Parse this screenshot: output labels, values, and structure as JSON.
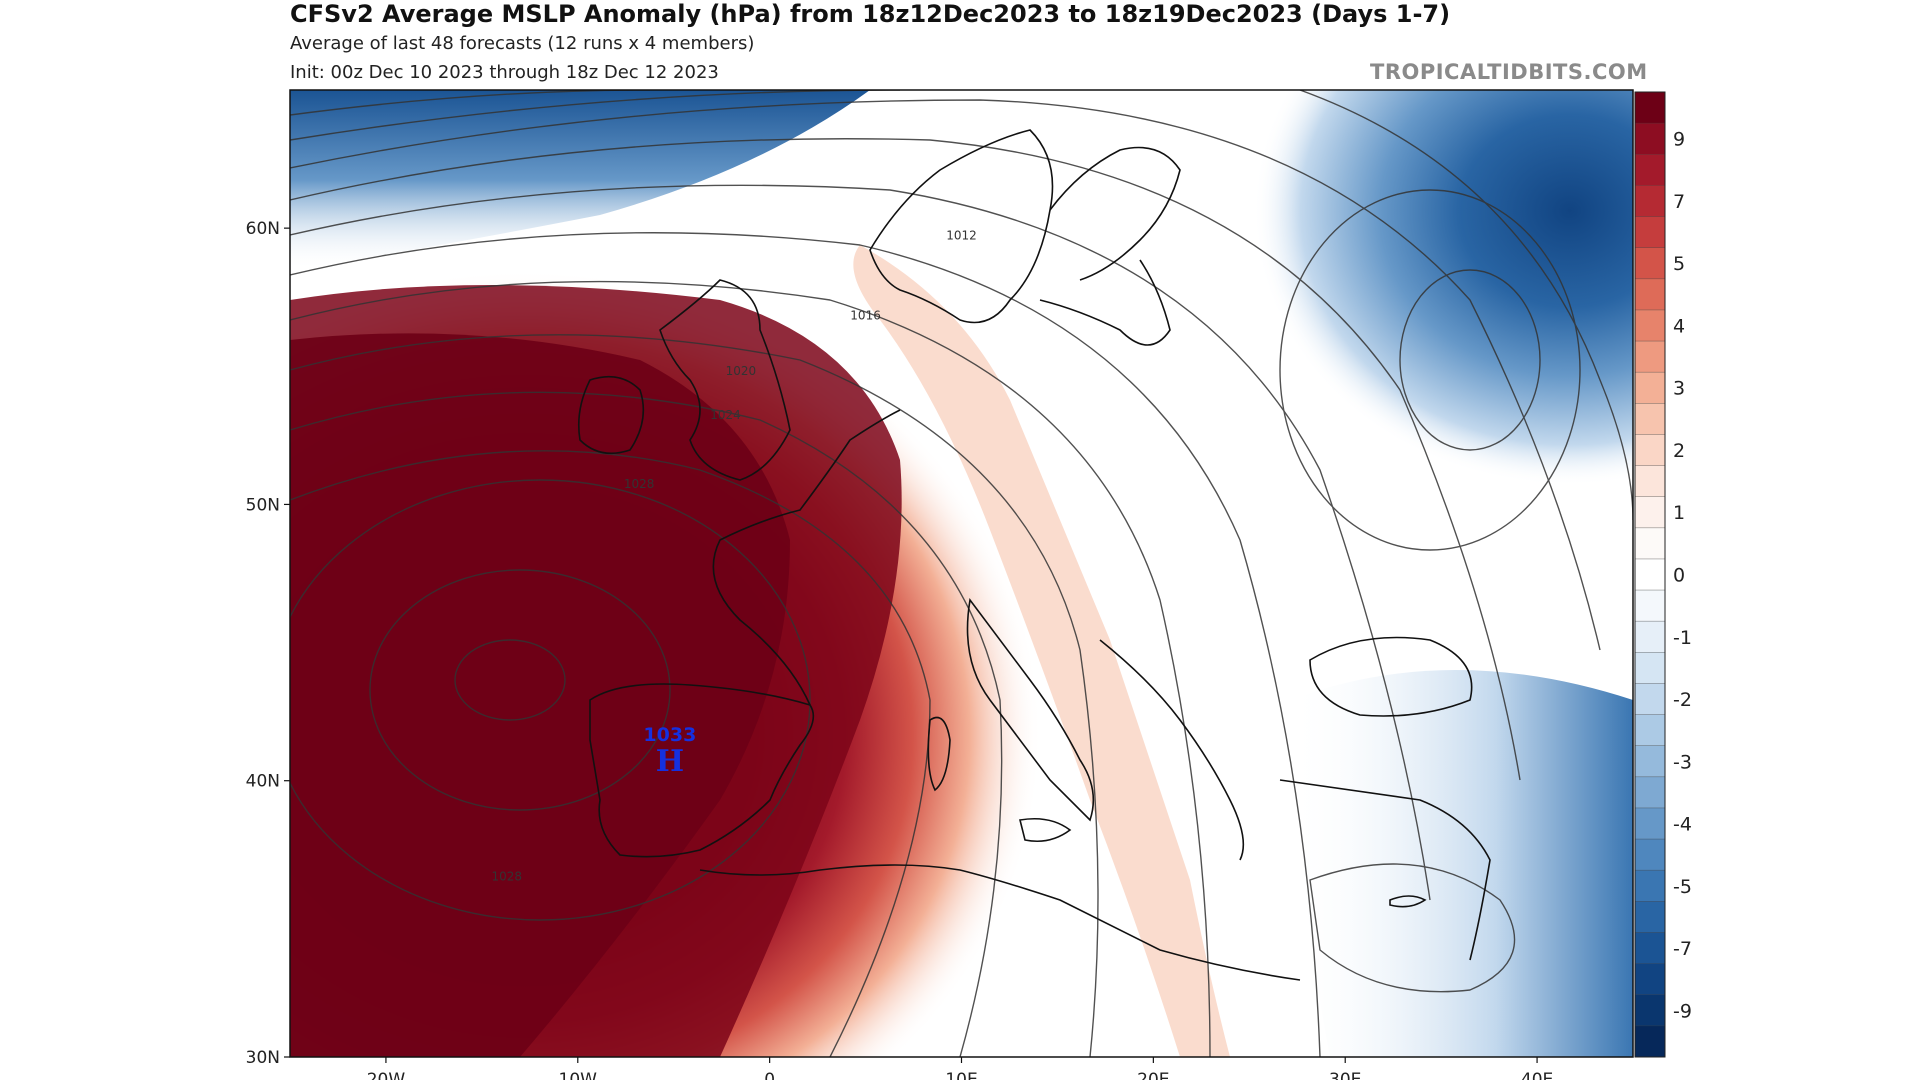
{
  "header": {
    "title": "CFSv2 Average MSLP Anomaly (hPa) from 18z12Dec2023 to 18z19Dec2023 (Days 1-7)",
    "line1": "Average of last 48 forecasts (12 runs x 4 members)",
    "line2": "Init: 00z Dec 10 2023 through 18z Dec 12 2023",
    "credit": "TROPICALTIDBITS.COM"
  },
  "map": {
    "lon_range": [
      -25,
      45
    ],
    "lat_range": [
      30,
      65
    ],
    "lon_ticks": [
      {
        "value": -20,
        "label": "20W"
      },
      {
        "value": -10,
        "label": "10W"
      },
      {
        "value": 0,
        "label": "0"
      },
      {
        "value": 10,
        "label": "10E"
      },
      {
        "value": 20,
        "label": "20E"
      },
      {
        "value": 30,
        "label": "30E"
      },
      {
        "value": 40,
        "label": "40E"
      }
    ],
    "lat_ticks": [
      {
        "value": 60,
        "label": "60N"
      },
      {
        "value": 50,
        "label": "50N"
      },
      {
        "value": 40,
        "label": "40N"
      },
      {
        "value": 30,
        "label": "30N"
      }
    ],
    "isobar_labels": [
      {
        "text": "1012",
        "lon": 10,
        "lat": 59.7
      },
      {
        "text": "1016",
        "lon": 5,
        "lat": 56.8
      },
      {
        "text": "1020",
        "lon": -1.5,
        "lat": 54.8
      },
      {
        "text": "1024",
        "lon": -2.3,
        "lat": 53.2
      },
      {
        "text": "1028",
        "lon": -6.8,
        "lat": 50.7
      },
      {
        "text": "1028",
        "lon": -13.7,
        "lat": 36.5
      }
    ],
    "high_center": {
      "value": "1033",
      "symbol": "H",
      "lon": -5.2,
      "lat": 41.0
    }
  },
  "colorbar": {
    "levels": [
      {
        "label": "",
        "color": "#6d0016"
      },
      {
        "label": "9",
        "color": "#8d0d22"
      },
      {
        "label": "",
        "color": "#a31a2b"
      },
      {
        "label": "7",
        "color": "#b52a33"
      },
      {
        "label": "",
        "color": "#c53d3d"
      },
      {
        "label": "5",
        "color": "#d35449"
      },
      {
        "label": "",
        "color": "#de6b58"
      },
      {
        "label": "4",
        "color": "#e7836b"
      },
      {
        "label": "",
        "color": "#ee9a80"
      },
      {
        "label": "3",
        "color": "#f3b096"
      },
      {
        "label": "",
        "color": "#f7c4ae"
      },
      {
        "label": "2",
        "color": "#fad6c6"
      },
      {
        "label": "",
        "color": "#fce5db"
      },
      {
        "label": "1",
        "color": "#fdf1ec"
      },
      {
        "label": "",
        "color": "#fdfaf8"
      },
      {
        "label": "0",
        "color": "#ffffff"
      },
      {
        "label": "",
        "color": "#f4f8fc"
      },
      {
        "label": "-1",
        "color": "#e6eff8"
      },
      {
        "label": "",
        "color": "#d5e5f3"
      },
      {
        "label": "-2",
        "color": "#c2d8ed"
      },
      {
        "label": "",
        "color": "#accae5"
      },
      {
        "label": "-3",
        "color": "#95badc"
      },
      {
        "label": "",
        "color": "#7ea9d2"
      },
      {
        "label": "-4",
        "color": "#6698c8"
      },
      {
        "label": "",
        "color": "#4f87be"
      },
      {
        "label": "-5",
        "color": "#3a76b2"
      },
      {
        "label": "",
        "color": "#2965a4"
      },
      {
        "label": "-7",
        "color": "#1b5494"
      },
      {
        "label": "",
        "color": "#114482"
      },
      {
        "label": "-9",
        "color": "#0a366e"
      },
      {
        "label": "",
        "color": "#06285a"
      }
    ]
  },
  "colors": {
    "positive_max": "#6d0016",
    "neutral": "#ffffff",
    "negative_max": "#06285a",
    "high_marker": "#1530e0"
  }
}
